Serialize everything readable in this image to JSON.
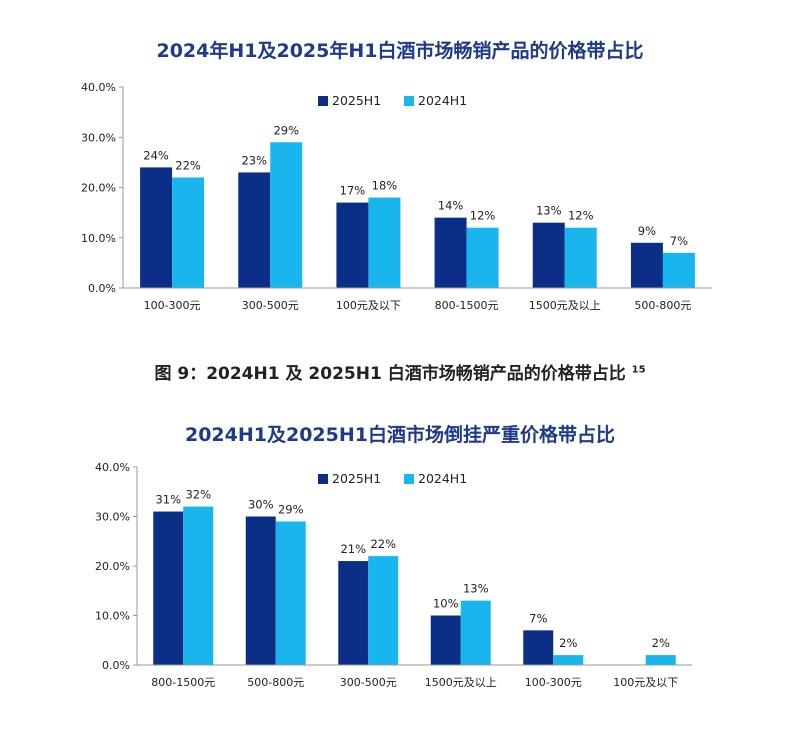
{
  "figure_caption": {
    "text": "图 9：2024H1 及 2025H1 白酒市场畅销产品的价格带占比",
    "superscript": "15"
  },
  "colors": {
    "series_2025": "#0b2f87",
    "series_2024": "#19b6ee",
    "title": "#1f3a8a"
  },
  "chart_data": [
    {
      "type": "bar",
      "title": "2024年H1及2025年H1白酒市场畅销产品的价格带占比",
      "categories": [
        "100-300元",
        "300-500元",
        "100元及以下",
        "800-1500元",
        "1500元及以上",
        "500-800元"
      ],
      "series": [
        {
          "name": "2025H1",
          "values": [
            24,
            23,
            17,
            14,
            13,
            9
          ],
          "labels": [
            "24%",
            "23%",
            "17%",
            "14%",
            "13%",
            "9%"
          ]
        },
        {
          "name": "2024H1",
          "values": [
            22,
            29,
            18,
            12,
            12,
            7
          ],
          "labels": [
            "22%",
            "29%",
            "18%",
            "12%",
            "12%",
            "7%"
          ]
        }
      ],
      "yticks": [
        "0.0%",
        "10.0%",
        "20.0%",
        "30.0%",
        "40.0%"
      ],
      "ylim": [
        0,
        40
      ],
      "legend_position": "top-center"
    },
    {
      "type": "bar",
      "title": "2024H1及2025H1白酒市场倒挂严重价格带占比",
      "categories": [
        "800-1500元",
        "500-800元",
        "300-500元",
        "1500元及以上",
        "100-300元",
        "100元及以下"
      ],
      "series": [
        {
          "name": "2025H1",
          "values": [
            31,
            30,
            21,
            10,
            7,
            0
          ],
          "labels": [
            "31%",
            "30%",
            "21%",
            "10%",
            "7%",
            ""
          ]
        },
        {
          "name": "2024H1",
          "values": [
            32,
            29,
            22,
            13,
            2,
            2
          ],
          "labels": [
            "32%",
            "29%",
            "22%",
            "13%",
            "2%",
            "2%"
          ]
        }
      ],
      "yticks": [
        "0.0%",
        "10.0%",
        "20.0%",
        "30.0%",
        "40.0%"
      ],
      "ylim": [
        0,
        40
      ],
      "legend_position": "top-center"
    }
  ]
}
